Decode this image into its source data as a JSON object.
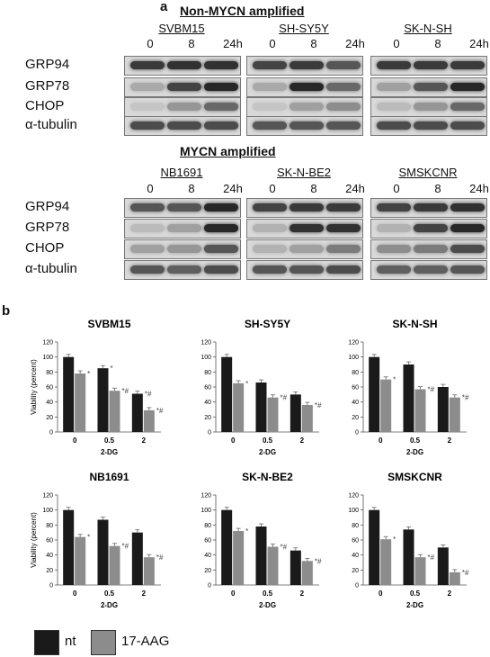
{
  "panel_a": {
    "letter": "a",
    "groups": [
      {
        "title": "Non-MYCN amplified",
        "proteins": [
          "GRP94",
          "GRP78",
          "CHOP",
          "α-tubulin"
        ],
        "lines": [
          {
            "name": "SVBM15",
            "times": [
              "0",
              "8",
              "24h"
            ]
          },
          {
            "name": "SH-SY5Y",
            "times": [
              "0",
              "8",
              "24h"
            ]
          },
          {
            "name": "SK-N-SH",
            "times": [
              "0",
              "8",
              "24h"
            ]
          }
        ]
      },
      {
        "title": "MYCN amplified",
        "proteins": [
          "GRP94",
          "GRP78",
          "CHOP",
          "α-tubulin"
        ],
        "lines": [
          {
            "name": "NB1691",
            "times": [
              "0",
              "8",
              "24h"
            ]
          },
          {
            "name": "SK-N-BE2",
            "times": [
              "0",
              "8",
              "24h"
            ]
          },
          {
            "name": "SMSKCNR",
            "times": [
              "0",
              "8",
              "24h"
            ]
          }
        ]
      }
    ]
  },
  "panel_b": {
    "letter": "b"
  },
  "chart_data": [
    {
      "type": "bar",
      "title": "SVBM15",
      "categories": [
        "0",
        "0.5",
        "2"
      ],
      "xlabel": "2-DG",
      "ylabel": "Viability (percent)",
      "ylim": [
        0,
        120
      ],
      "yticks": [
        "0",
        "20",
        "40",
        "60",
        "80",
        "100",
        "120"
      ],
      "series": [
        {
          "name": "nt",
          "values": [
            100,
            85,
            51
          ]
        },
        {
          "name": "17-AAG",
          "values": [
            78,
            55,
            29
          ]
        }
      ],
      "annotations": [
        [
          "",
          "*",
          "*#"
        ],
        [
          "*",
          "*#",
          "*#"
        ]
      ]
    },
    {
      "type": "bar",
      "title": "SH-SY5Y",
      "categories": [
        "0",
        "0.5",
        "2"
      ],
      "xlabel": "2-DG",
      "ylabel": "",
      "ylim": [
        0,
        120
      ],
      "yticks": [
        "0",
        "20",
        "40",
        "60",
        "80",
        "100",
        "120"
      ],
      "series": [
        {
          "name": "nt",
          "values": [
            100,
            66,
            50
          ]
        },
        {
          "name": "17-AAG",
          "values": [
            65,
            46,
            36
          ]
        }
      ],
      "annotations": [
        [
          "",
          "",
          ""
        ],
        [
          "*",
          "*#",
          "*#"
        ]
      ]
    },
    {
      "type": "bar",
      "title": "SK-N-SH",
      "categories": [
        "0",
        "0.5",
        "2"
      ],
      "xlabel": "2-DG",
      "ylabel": "",
      "ylim": [
        0,
        120
      ],
      "yticks": [
        "0",
        "20",
        "40",
        "60",
        "80",
        "100",
        "120"
      ],
      "series": [
        {
          "name": "nt",
          "values": [
            100,
            90,
            60
          ]
        },
        {
          "name": "17-AAG",
          "values": [
            70,
            57,
            46
          ]
        }
      ],
      "annotations": [
        [
          "",
          "",
          ""
        ],
        [
          "*",
          "*#",
          "*#"
        ]
      ]
    },
    {
      "type": "bar",
      "title": "NB1691",
      "categories": [
        "0",
        "0.5",
        "2"
      ],
      "xlabel": "2-DG",
      "ylabel": "Viability (percent)",
      "ylim": [
        0,
        120
      ],
      "yticks": [
        "0",
        "20",
        "40",
        "60",
        "80",
        "100",
        "120"
      ],
      "series": [
        {
          "name": "nt",
          "values": [
            100,
            87,
            70
          ]
        },
        {
          "name": "17-AAG",
          "values": [
            64,
            52,
            37
          ]
        }
      ],
      "annotations": [
        [
          "",
          "",
          ""
        ],
        [
          "*",
          "*#",
          "*#"
        ]
      ]
    },
    {
      "type": "bar",
      "title": "SK-N-BE2",
      "categories": [
        "0",
        "0.5",
        "2"
      ],
      "xlabel": "2-DG",
      "ylabel": "",
      "ylim": [
        0,
        120
      ],
      "yticks": [
        "0",
        "20",
        "40",
        "60",
        "80",
        "100",
        "120"
      ],
      "series": [
        {
          "name": "nt",
          "values": [
            100,
            78,
            46
          ]
        },
        {
          "name": "17-AAG",
          "values": [
            72,
            51,
            32
          ]
        }
      ],
      "annotations": [
        [
          "",
          "",
          ""
        ],
        [
          "*",
          "*#",
          "*#"
        ]
      ]
    },
    {
      "type": "bar",
      "title": "SMSKCNR",
      "categories": [
        "0",
        "0.5",
        "2"
      ],
      "xlabel": "2-DG",
      "ylabel": "",
      "ylim": [
        0,
        120
      ],
      "yticks": [
        "0",
        "20",
        "40",
        "60",
        "80",
        "100",
        "120"
      ],
      "series": [
        {
          "name": "nt",
          "values": [
            100,
            74,
            50
          ]
        },
        {
          "name": "17-AAG",
          "values": [
            61,
            37,
            17
          ]
        }
      ],
      "annotations": [
        [
          "",
          "",
          ""
        ],
        [
          "*",
          "*#",
          "*#"
        ]
      ]
    }
  ],
  "legend": {
    "items": [
      {
        "label": "nt",
        "color": "#1a1a1a"
      },
      {
        "label": "17-AAG",
        "color": "#8c8c8c"
      }
    ]
  },
  "colors": {
    "nt": "#1a1a1a",
    "aag": "#8c8c8c",
    "blot_bg": "#d9d9d9"
  }
}
